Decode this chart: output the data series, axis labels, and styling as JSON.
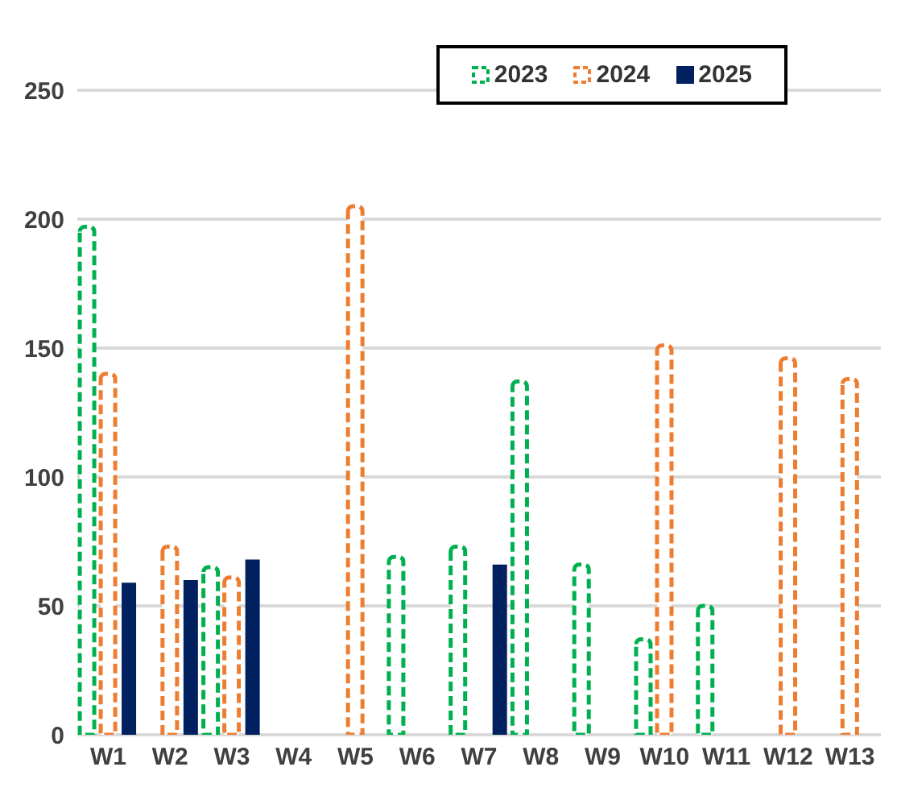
{
  "chart_data": {
    "type": "bar",
    "categories": [
      "W1",
      "W2",
      "W3",
      "W4",
      "W5",
      "W6",
      "W7",
      "W8",
      "W9",
      "W10",
      "W11",
      "W12",
      "W13"
    ],
    "series": [
      {
        "name": "2023",
        "color": "#00b050",
        "line_style": "dashed",
        "values": [
          197,
          null,
          65,
          null,
          null,
          69,
          73,
          137,
          66,
          37,
          50,
          null,
          null
        ]
      },
      {
        "name": "2024",
        "color": "#ed7d31",
        "line_style": "dashed",
        "values": [
          140,
          73,
          61,
          null,
          205,
          null,
          null,
          null,
          null,
          151,
          null,
          146,
          138
        ]
      },
      {
        "name": "2025",
        "color": "#002060",
        "line_style": "solid",
        "values": [
          59,
          60,
          68,
          null,
          null,
          null,
          66,
          null,
          null,
          null,
          null,
          null,
          null
        ]
      }
    ],
    "ylim": [
      0,
      250
    ],
    "yticks": [
      0,
      50,
      100,
      150,
      200,
      250
    ],
    "grid": "y",
    "legend": "top right"
  }
}
